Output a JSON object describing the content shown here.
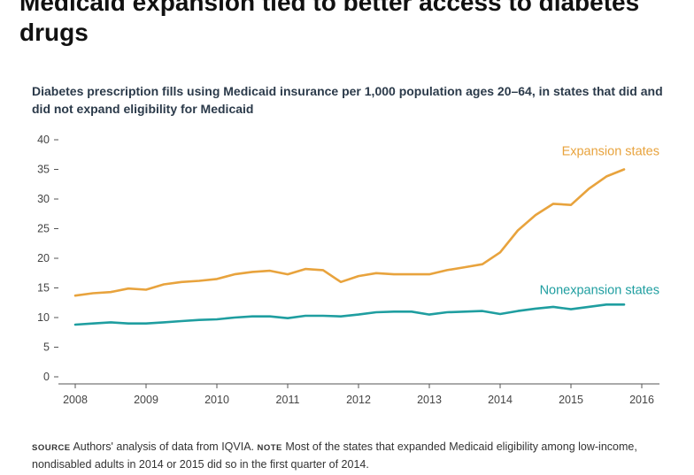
{
  "headline": "Medicaid expansion tied to better access to diabetes drugs",
  "chart_data": {
    "type": "line",
    "title": "Diabetes prescription fills using Medicaid insurance per 1,000 population ages 20–64, in states that did and did not expand eligibility for Medicaid",
    "xlabel": "",
    "ylabel": "",
    "xlim": [
      2008,
      2016
    ],
    "ylim": [
      0,
      40
    ],
    "x_ticks": [
      "2008",
      "2009",
      "2010",
      "2011",
      "2012",
      "2013",
      "2014",
      "2015",
      "2016"
    ],
    "y_ticks": [
      "0",
      "5",
      "10",
      "15",
      "20",
      "25",
      "30",
      "35",
      "40"
    ],
    "grid": false,
    "series": [
      {
        "name": "Expansion states",
        "color": "#e8a33d",
        "x": [
          2008.0,
          2008.25,
          2008.5,
          2008.75,
          2009.0,
          2009.25,
          2009.5,
          2009.75,
          2010.0,
          2010.25,
          2010.5,
          2010.75,
          2011.0,
          2011.25,
          2011.5,
          2011.75,
          2012.0,
          2012.25,
          2012.5,
          2012.75,
          2013.0,
          2013.25,
          2013.5,
          2013.75,
          2014.0,
          2014.25,
          2014.5,
          2014.75,
          2015.0,
          2015.25,
          2015.5,
          2015.75
        ],
        "values": [
          13.7,
          14.1,
          14.3,
          14.9,
          14.7,
          15.6,
          16.0,
          16.2,
          16.5,
          17.3,
          17.7,
          17.9,
          17.3,
          18.2,
          18.0,
          16.0,
          17.0,
          17.5,
          17.3,
          17.3,
          17.3,
          18.0,
          18.5,
          19.0,
          21.0,
          24.7,
          27.3,
          29.2,
          29.0,
          31.7,
          33.8,
          35.0
        ]
      },
      {
        "name": "Nonexpansion states",
        "color": "#1f9ea0",
        "x": [
          2008.0,
          2008.25,
          2008.5,
          2008.75,
          2009.0,
          2009.25,
          2009.5,
          2009.75,
          2010.0,
          2010.25,
          2010.5,
          2010.75,
          2011.0,
          2011.25,
          2011.5,
          2011.75,
          2012.0,
          2012.25,
          2012.5,
          2012.75,
          2013.0,
          2013.25,
          2013.5,
          2013.75,
          2014.0,
          2014.25,
          2014.5,
          2014.75,
          2015.0,
          2015.25,
          2015.5,
          2015.75
        ],
        "values": [
          8.8,
          9.0,
          9.2,
          9.0,
          9.0,
          9.2,
          9.4,
          9.6,
          9.7,
          10.0,
          10.2,
          10.2,
          9.9,
          10.3,
          10.3,
          10.2,
          10.5,
          10.9,
          11.0,
          11.0,
          10.5,
          10.9,
          11.0,
          11.1,
          10.6,
          11.1,
          11.5,
          11.8,
          11.4,
          11.8,
          12.2,
          12.2
        ]
      }
    ]
  },
  "footer": {
    "source_tag": "SOURCE",
    "source_text": "Authors' analysis of data from IQVIA.",
    "note_tag": "NOTE",
    "note_text": "Most of the states that expanded Medicaid eligibility among low-income, nondisabled adults in 2014 or 2015 did so in the first quarter of 2014."
  }
}
